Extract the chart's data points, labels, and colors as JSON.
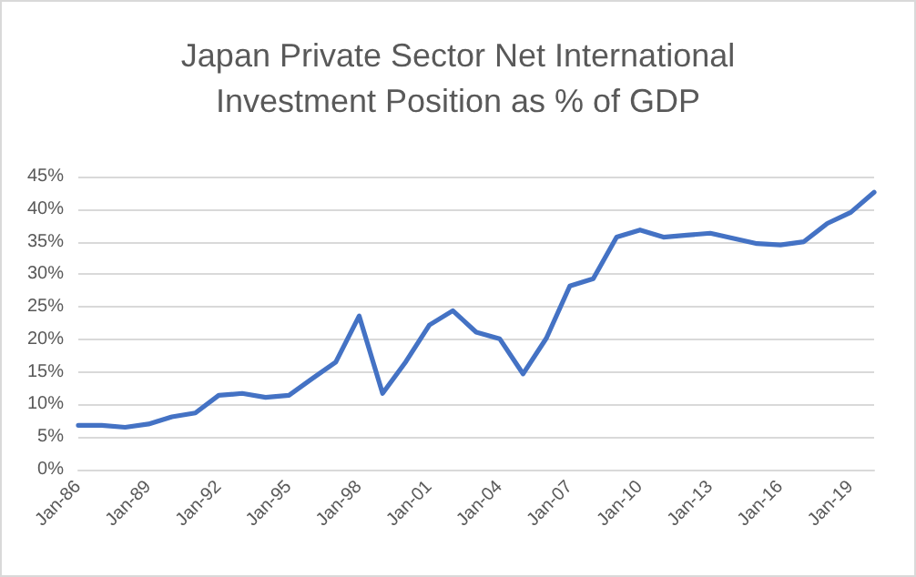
{
  "chart_data": {
    "type": "line",
    "title": "Japan Private Sector Net International\nInvestment Position as % of GDP",
    "categories": [
      "Jan-86",
      null,
      null,
      "Jan-89",
      null,
      null,
      "Jan-92",
      null,
      null,
      "Jan-95",
      null,
      null,
      "Jan-98",
      null,
      null,
      "Jan-01",
      null,
      null,
      "Jan-04",
      null,
      null,
      "Jan-07",
      null,
      null,
      "Jan-10",
      null,
      null,
      "Jan-13",
      null,
      null,
      "Jan-16",
      null,
      null,
      "Jan-19",
      null
    ],
    "series": [
      {
        "color": "#4472c4",
        "values": [
          6.8,
          6.8,
          6.5,
          7.0,
          8.1,
          8.7,
          11.4,
          11.7,
          11.1,
          11.4,
          14.0,
          16.5,
          23.6,
          11.7,
          16.6,
          22.2,
          24.4,
          21.1,
          20.1,
          14.7,
          20.2,
          28.2,
          29.3,
          35.7,
          36.8,
          35.7,
          36.0,
          36.3,
          35.5,
          34.7,
          34.5,
          35.0,
          37.8,
          39.5,
          42.6
        ]
      }
    ],
    "ylim": [
      0,
      45
    ],
    "yticks": [
      {
        "value": 0,
        "label": "0%"
      },
      {
        "value": 5,
        "label": "5%"
      },
      {
        "value": 10,
        "label": "10%"
      },
      {
        "value": 15,
        "label": "15%"
      },
      {
        "value": 20,
        "label": "20%"
      },
      {
        "value": 25,
        "label": "25%"
      },
      {
        "value": 30,
        "label": "30%"
      },
      {
        "value": 35,
        "label": "35%"
      },
      {
        "value": 40,
        "label": "40%"
      },
      {
        "value": 45,
        "label": "45%"
      }
    ],
    "grid": "y",
    "marker": "none",
    "line_style": "solid"
  }
}
